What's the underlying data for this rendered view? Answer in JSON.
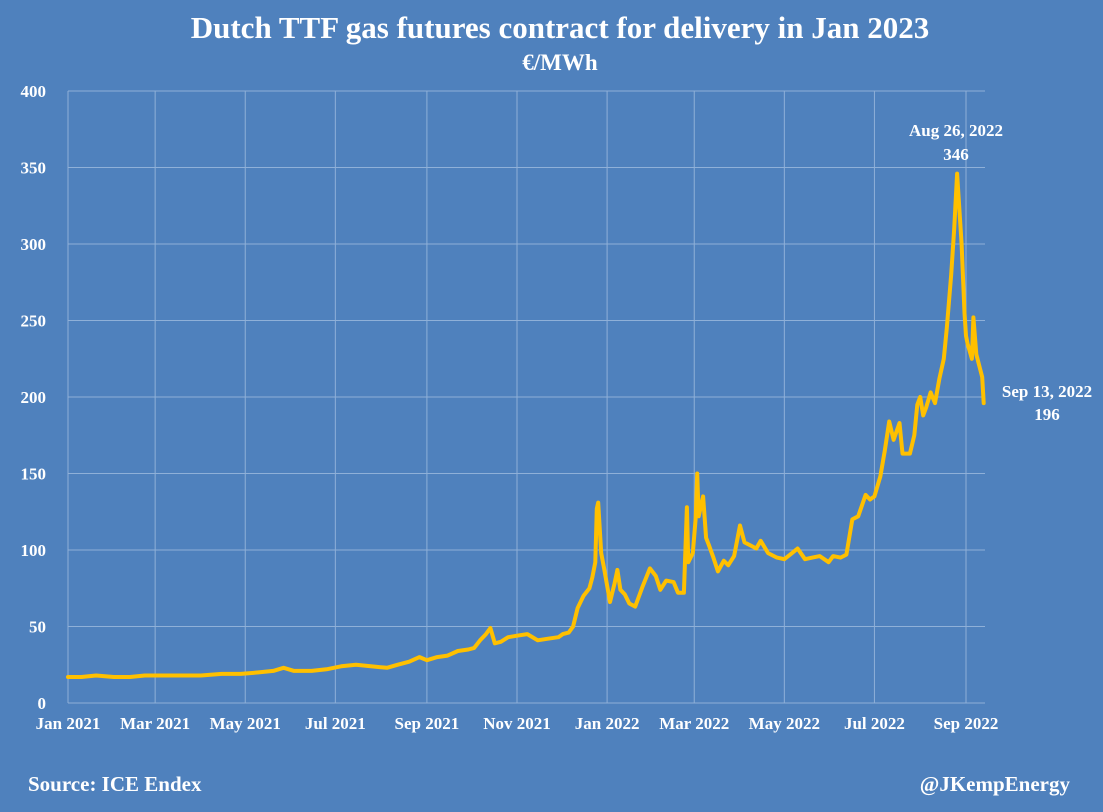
{
  "chart_data": {
    "type": "line",
    "title": "Dutch TTF gas futures contract for delivery in Jan 2023",
    "subtitle": "€/MWh",
    "xlabel": "",
    "ylabel": "",
    "ylim": [
      0,
      400
    ],
    "yticks": [
      "0",
      "50",
      "100",
      "150",
      "200",
      "250",
      "300",
      "350",
      "400"
    ],
    "xlim": [
      "2021-01-01",
      "2022-09-30"
    ],
    "xticks": [
      {
        "label": "Jan 2021",
        "date": "2021-01-01"
      },
      {
        "label": "Mar 2021",
        "date": "2021-03-01"
      },
      {
        "label": "May 2021",
        "date": "2021-05-01"
      },
      {
        "label": "Jul 2021",
        "date": "2021-07-01"
      },
      {
        "label": "Sep 2021",
        "date": "2021-09-01"
      },
      {
        "label": "Nov 2021",
        "date": "2021-11-01"
      },
      {
        "label": "Jan 2022",
        "date": "2022-01-01"
      },
      {
        "label": "Mar 2022",
        "date": "2022-03-01"
      },
      {
        "label": "May 2022",
        "date": "2022-05-01"
      },
      {
        "label": "Jul 2022",
        "date": "2022-07-01"
      },
      {
        "label": "Sep 2022",
        "date": "2022-09-01"
      }
    ],
    "grid": true,
    "legend": "none",
    "line_color": "#ffc000",
    "series": [
      {
        "points": [
          [
            "2021-01-01",
            17
          ],
          [
            "2021-01-10",
            17
          ],
          [
            "2021-01-20",
            18
          ],
          [
            "2021-02-01",
            17
          ],
          [
            "2021-02-12",
            17
          ],
          [
            "2021-02-22",
            18
          ],
          [
            "2021-03-05",
            18
          ],
          [
            "2021-03-20",
            18
          ],
          [
            "2021-04-01",
            18
          ],
          [
            "2021-04-15",
            19
          ],
          [
            "2021-04-28",
            19
          ],
          [
            "2021-05-10",
            20
          ],
          [
            "2021-05-20",
            21
          ],
          [
            "2021-05-27",
            23
          ],
          [
            "2021-06-03",
            21
          ],
          [
            "2021-06-15",
            21
          ],
          [
            "2021-06-25",
            22
          ],
          [
            "2021-07-05",
            24
          ],
          [
            "2021-07-15",
            25
          ],
          [
            "2021-07-25",
            24
          ],
          [
            "2021-08-05",
            23
          ],
          [
            "2021-08-12",
            25
          ],
          [
            "2021-08-20",
            27
          ],
          [
            "2021-08-27",
            30
          ],
          [
            "2021-09-01",
            28
          ],
          [
            "2021-09-08",
            30
          ],
          [
            "2021-09-15",
            31
          ],
          [
            "2021-09-22",
            34
          ],
          [
            "2021-09-29",
            35
          ],
          [
            "2021-10-03",
            36
          ],
          [
            "2021-10-07",
            41
          ],
          [
            "2021-10-11",
            45
          ],
          [
            "2021-10-14",
            49
          ],
          [
            "2021-10-17",
            39
          ],
          [
            "2021-10-21",
            40
          ],
          [
            "2021-10-26",
            43
          ],
          [
            "2021-11-01",
            44
          ],
          [
            "2021-11-08",
            45
          ],
          [
            "2021-11-15",
            41
          ],
          [
            "2021-11-22",
            42
          ],
          [
            "2021-11-29",
            43
          ],
          [
            "2021-12-02",
            45
          ],
          [
            "2021-12-06",
            46
          ],
          [
            "2021-12-09",
            50
          ],
          [
            "2021-12-12",
            62
          ],
          [
            "2021-12-16",
            70
          ],
          [
            "2021-12-20",
            75
          ],
          [
            "2021-12-22",
            82
          ],
          [
            "2021-12-24",
            92
          ],
          [
            "2021-12-25",
            127
          ],
          [
            "2021-12-26",
            131
          ],
          [
            "2021-12-28",
            98
          ],
          [
            "2021-12-30",
            88
          ],
          [
            "2022-01-03",
            66
          ],
          [
            "2022-01-06",
            78
          ],
          [
            "2022-01-08",
            87
          ],
          [
            "2022-01-10",
            74
          ],
          [
            "2022-01-13",
            71
          ],
          [
            "2022-01-16",
            65
          ],
          [
            "2022-01-20",
            63
          ],
          [
            "2022-01-25",
            76
          ],
          [
            "2022-01-30",
            88
          ],
          [
            "2022-02-03",
            83
          ],
          [
            "2022-02-06",
            74
          ],
          [
            "2022-02-10",
            80
          ],
          [
            "2022-02-15",
            79
          ],
          [
            "2022-02-18",
            72
          ],
          [
            "2022-02-22",
            72
          ],
          [
            "2022-02-24",
            128
          ],
          [
            "2022-02-25",
            92
          ],
          [
            "2022-02-28",
            98
          ],
          [
            "2022-03-02",
            121
          ],
          [
            "2022-03-03",
            150
          ],
          [
            "2022-03-04",
            122
          ],
          [
            "2022-03-07",
            135
          ],
          [
            "2022-03-09",
            108
          ],
          [
            "2022-03-11",
            103
          ],
          [
            "2022-03-14",
            95
          ],
          [
            "2022-03-17",
            86
          ],
          [
            "2022-03-21",
            93
          ],
          [
            "2022-03-24",
            90
          ],
          [
            "2022-03-28",
            96
          ],
          [
            "2022-04-01",
            116
          ],
          [
            "2022-04-04",
            105
          ],
          [
            "2022-04-08",
            103
          ],
          [
            "2022-04-12",
            101
          ],
          [
            "2022-04-15",
            106
          ],
          [
            "2022-04-20",
            98
          ],
          [
            "2022-04-26",
            95
          ],
          [
            "2022-05-01",
            94
          ],
          [
            "2022-05-05",
            97
          ],
          [
            "2022-05-10",
            101
          ],
          [
            "2022-05-15",
            94
          ],
          [
            "2022-05-20",
            95
          ],
          [
            "2022-05-25",
            96
          ],
          [
            "2022-05-31",
            92
          ],
          [
            "2022-06-03",
            96
          ],
          [
            "2022-06-08",
            95
          ],
          [
            "2022-06-12",
            97
          ],
          [
            "2022-06-16",
            120
          ],
          [
            "2022-06-20",
            122
          ],
          [
            "2022-06-25",
            136
          ],
          [
            "2022-06-28",
            133
          ],
          [
            "2022-07-01",
            135
          ],
          [
            "2022-07-05",
            148
          ],
          [
            "2022-07-08",
            165
          ],
          [
            "2022-07-11",
            184
          ],
          [
            "2022-07-14",
            172
          ],
          [
            "2022-07-18",
            183
          ],
          [
            "2022-07-20",
            163
          ],
          [
            "2022-07-25",
            163
          ],
          [
            "2022-07-28",
            175
          ],
          [
            "2022-07-30",
            195
          ],
          [
            "2022-08-01",
            200
          ],
          [
            "2022-08-03",
            188
          ],
          [
            "2022-08-05",
            193
          ],
          [
            "2022-08-08",
            203
          ],
          [
            "2022-08-11",
            196
          ],
          [
            "2022-08-14",
            212
          ],
          [
            "2022-08-17",
            225
          ],
          [
            "2022-08-19",
            245
          ],
          [
            "2022-08-22",
            280
          ],
          [
            "2022-08-24",
            310
          ],
          [
            "2022-08-26",
            346
          ],
          [
            "2022-08-29",
            300
          ],
          [
            "2022-08-31",
            255
          ],
          [
            "2022-09-01",
            240
          ],
          [
            "2022-09-02",
            235
          ],
          [
            "2022-09-05",
            225
          ],
          [
            "2022-09-06",
            252
          ],
          [
            "2022-09-08",
            228
          ],
          [
            "2022-09-12",
            213
          ],
          [
            "2022-09-13",
            196
          ]
        ]
      }
    ],
    "annotations": [
      {
        "date": "2022-08-26",
        "value": 346,
        "lines": [
          "Aug 26, 2022",
          "346"
        ]
      },
      {
        "date": "2022-09-13",
        "value": 196,
        "lines": [
          "Sep 13, 2022",
          "196"
        ]
      }
    ]
  },
  "footer": {
    "source": "Source: ICE Endex",
    "credit": "@JKempEnergy"
  }
}
